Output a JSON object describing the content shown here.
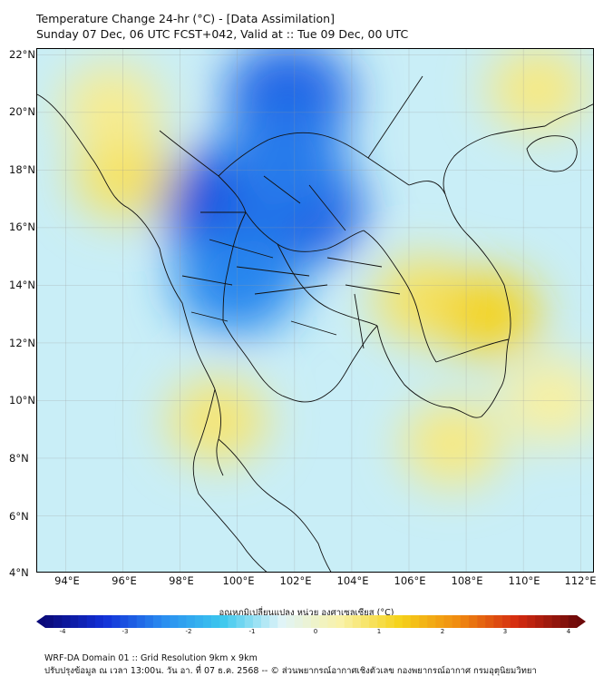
{
  "title": {
    "line1": "Temperature Change 24-hr (°C) - [Data Assimilation]",
    "line2": "Sunday 07 Dec, 06 UTC FCST+042, Valid at :: Tue 09 Dec, 00 UTC"
  },
  "axes": {
    "lat_labels": [
      "22°N",
      "20°N",
      "18°N",
      "16°N",
      "14°N",
      "12°N",
      "10°N",
      "8°N",
      "6°N",
      "4°N"
    ],
    "lon_labels": [
      "94°E",
      "96°E",
      "98°E",
      "100°E",
      "102°E",
      "104°E",
      "106°E",
      "108°E",
      "110°E",
      "112°E"
    ],
    "lat_range": [
      4,
      22.2
    ],
    "lon_range": [
      93,
      112.5
    ]
  },
  "colorbar": {
    "title": "อุณหภูมิเปลี่ยนแปลง หน่วย องศาเซลเซียส (°C)",
    "ticks": [
      "-4",
      "-3",
      "-2",
      "-1",
      "0",
      "1",
      "2",
      "3",
      "4"
    ],
    "min": -4,
    "max": 4,
    "colors": [
      "#0a0a7a",
      "#1230d8",
      "#2a8ef0",
      "#3cc8ee",
      "#e0f4f8",
      "#f9f2a8",
      "#f5d21a",
      "#f08a10",
      "#d42a10",
      "#6e0a0a"
    ]
  },
  "footer": {
    "line1": "WRF-DA Domain 01 :: Grid Resolution 9km x 9km",
    "line2": "ปรับปรุงข้อมูล ณ เวลา 13:00น. วัน อา. ที่ 07 ธ.ค. 2568 -- © ส่วนพยากรณ์อากาศเชิงตัวเลข กองพยากรณ์อากาศ กรมอุตุนิยมวิทยา"
  },
  "field_blobs": [
    {
      "lon": 101.8,
      "lat": 20.6,
      "value": -2.6
    },
    {
      "lon": 99.5,
      "lat": 16.9,
      "value": -2.9
    },
    {
      "lon": 102.2,
      "lat": 16.6,
      "value": -2.7
    },
    {
      "lon": 100.0,
      "lat": 14.2,
      "value": -2.3
    },
    {
      "lon": 101.6,
      "lat": 18.2,
      "value": -2.4
    },
    {
      "lon": 96.0,
      "lat": 17.8,
      "value": 0.9
    },
    {
      "lon": 95.6,
      "lat": 20.2,
      "value": 0.6
    },
    {
      "lon": 106.5,
      "lat": 13.5,
      "value": 0.9
    },
    {
      "lon": 108.8,
      "lat": 13.0,
      "value": 1.3
    },
    {
      "lon": 110.5,
      "lat": 20.8,
      "value": 0.7
    },
    {
      "lon": 99.3,
      "lat": 9.3,
      "value": 0.8
    },
    {
      "lon": 107.5,
      "lat": 8.5,
      "value": 0.7
    },
    {
      "lon": 111.0,
      "lat": 10.0,
      "value": 0.5
    }
  ]
}
